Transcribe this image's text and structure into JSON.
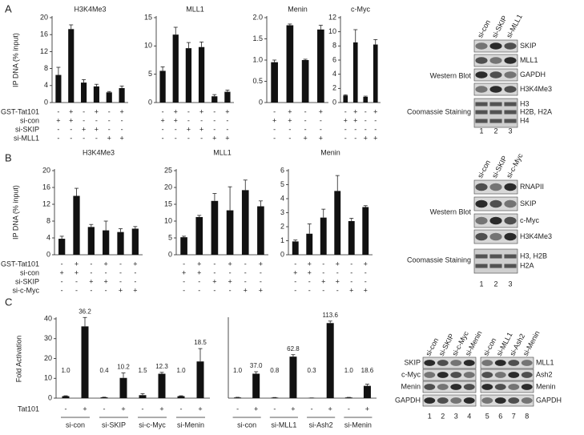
{
  "panels": [
    {
      "letter": "A",
      "ylabel": "IP DNA (% input)",
      "condition_names": [
        "GST-Tat101",
        "si-con",
        "si-SKIP",
        "si-MLL1"
      ]
    },
    {
      "letter": "B",
      "ylabel": "IP DNA (% input)",
      "condition_names": [
        "GST-Tat101",
        "si-con",
        "si-SKIP",
        "si-c-Myc"
      ]
    },
    {
      "letter": "C",
      "ylabel": "Fold Activation",
      "condition_names": [
        "Tat101"
      ]
    }
  ],
  "chart_data": [
    {
      "type": "bar",
      "title": "H3K4Me3",
      "color": "#111111",
      "values": [
        6.5,
        17.3,
        4.7,
        3.8,
        2.4,
        3.4
      ],
      "errors": [
        1.8,
        1.0,
        0.7,
        0.5,
        0.2,
        0.5
      ],
      "ylim": [
        0,
        20
      ],
      "yticks": [
        0,
        4,
        8,
        12,
        16,
        20
      ],
      "conditions": [
        [
          "-",
          "+",
          "-",
          "+",
          "-",
          "+"
        ],
        [
          "+",
          "+",
          "-",
          "-",
          "-",
          "-"
        ],
        [
          "-",
          "-",
          "+",
          "+",
          "-",
          "-"
        ],
        [
          "-",
          "-",
          "-",
          "-",
          "+",
          "+"
        ]
      ]
    },
    {
      "type": "bar",
      "title": "MLL1",
      "color": "#111111",
      "values": [
        5.6,
        12.0,
        9.6,
        9.8,
        1.1,
        1.9
      ],
      "errors": [
        0.7,
        1.3,
        1.0,
        0.9,
        0.3,
        0.3
      ],
      "ylim": [
        0,
        15
      ],
      "yticks": [
        0,
        5,
        10,
        15
      ],
      "conditions": [
        [
          "-",
          "+",
          "-",
          "+",
          "-",
          "+"
        ],
        [
          "+",
          "+",
          "-",
          "-",
          "-",
          "-"
        ],
        [
          "-",
          "-",
          "+",
          "+",
          "-",
          "-"
        ],
        [
          "-",
          "-",
          "-",
          "-",
          "+",
          "+"
        ]
      ]
    },
    {
      "type": "bar",
      "title": "Menin",
      "color": "#111111",
      "values": [
        0.95,
        1.82,
        1.0,
        1.72
      ],
      "errors": [
        0.05,
        0.03,
        0.02,
        0.1
      ],
      "ylim": [
        0,
        2
      ],
      "yticks": [
        0,
        0.5,
        {
          "value": 1,
          "label": "1.0"
        },
        1.5,
        {
          "value": 2,
          "label": "2.0"
        }
      ],
      "conditions": [
        [
          "-",
          "+",
          "-",
          "+"
        ],
        [
          "+",
          "+",
          "-",
          "-"
        ],
        [
          "-",
          "-",
          "-",
          "-"
        ],
        [
          "-",
          "-",
          "+",
          "+"
        ]
      ]
    },
    {
      "type": "bar",
      "title": "c-Myc",
      "color": "#111111",
      "values": [
        1.0,
        8.5,
        0.8,
        8.2
      ],
      "errors": [
        0.1,
        1.8,
        0.1,
        0.7
      ],
      "ylim": [
        0,
        12
      ],
      "yticks": [
        0,
        2,
        4,
        6,
        8,
        10,
        12
      ],
      "conditions": [
        [
          "-",
          "+",
          "-",
          "+"
        ],
        [
          "+",
          "+",
          "-",
          "-"
        ],
        [
          "-",
          "-",
          "-",
          "-"
        ],
        [
          "-",
          "-",
          "+",
          "+"
        ]
      ]
    },
    {
      "type": "bar",
      "title": "H3K4Me3",
      "color": "#111111",
      "values": [
        3.8,
        14.0,
        6.6,
        5.8,
        5.4,
        6.2
      ],
      "errors": [
        0.6,
        1.8,
        0.6,
        2.2,
        0.8,
        0.5
      ],
      "ylim": [
        0,
        20
      ],
      "yticks": [
        0,
        4,
        8,
        12,
        16,
        20
      ],
      "conditions": [
        [
          "-",
          "+",
          "-",
          "+",
          "-",
          "+"
        ],
        [
          "+",
          "+",
          "-",
          "-",
          "-",
          "-"
        ],
        [
          "-",
          "-",
          "+",
          "+",
          "-",
          "-"
        ],
        [
          "-",
          "-",
          "-",
          "-",
          "+",
          "+"
        ]
      ]
    },
    {
      "type": "bar",
      "title": "MLL1",
      "color": "#111111",
      "values": [
        5.2,
        11.2,
        16.0,
        13.2,
        19.2,
        14.4
      ],
      "errors": [
        0.3,
        0.5,
        2.2,
        7.0,
        3.0,
        1.6
      ],
      "ylim": [
        0,
        25
      ],
      "yticks": [
        0,
        5,
        10,
        15,
        20,
        25
      ],
      "conditions": [
        [
          "-",
          "+",
          "-",
          "+",
          "-",
          "+"
        ],
        [
          "+",
          "+",
          "-",
          "-",
          "-",
          "-"
        ],
        [
          "-",
          "-",
          "+",
          "+",
          "-",
          "-"
        ],
        [
          "-",
          "-",
          "-",
          "-",
          "+",
          "+"
        ]
      ]
    },
    {
      "type": "bar",
      "title": "Menin",
      "color": "#111111",
      "values": [
        0.95,
        1.5,
        2.65,
        4.55,
        2.4,
        3.4
      ],
      "errors": [
        0.1,
        0.7,
        0.6,
        1.1,
        0.2,
        0.1
      ],
      "ylim": [
        0,
        6
      ],
      "yticks": [
        0,
        1,
        2,
        3,
        4,
        5,
        6
      ],
      "conditions": [
        [
          "-",
          "+",
          "-",
          "+",
          "-",
          "+"
        ],
        [
          "+",
          "+",
          "-",
          "-",
          "-",
          "-"
        ],
        [
          "-",
          "-",
          "+",
          "+",
          "-",
          "-"
        ],
        [
          "-",
          "-",
          "-",
          "-",
          "+",
          "+"
        ]
      ]
    },
    {
      "type": "bar",
      "color": "#111111",
      "values": [
        1.0,
        36.2,
        0.4,
        10.2,
        1.5,
        12.3,
        1.0,
        18.5
      ],
      "value_labels": [
        "1.0",
        "36.2",
        "0.4",
        "10.2",
        "1.5",
        "12.3",
        "1.0",
        "18.5"
      ],
      "errors": [
        0.2,
        4.5,
        0.1,
        2.5,
        0.8,
        0.7,
        0.2,
        6.5
      ],
      "ylim": [
        0,
        40
      ],
      "yticks": [
        0,
        10,
        20,
        30,
        40
      ],
      "conditions": [
        [
          "-",
          "+",
          "-",
          "+",
          "-",
          "+",
          "-",
          "+"
        ]
      ],
      "groups": [
        "si-con",
        "si-SKIP",
        "si-c-Myc",
        "si-Menin"
      ]
    },
    {
      "type": "bar",
      "color": "#111111",
      "values": [
        1.0,
        37.0,
        0.8,
        62.8,
        0.3,
        113.6,
        1.0,
        18.6
      ],
      "value_labels": [
        "1.0",
        "37.0",
        "0.8",
        "62.8",
        "0.3",
        "113.6",
        "1.0",
        "18.6"
      ],
      "errors": [
        0.3,
        3.0,
        0.2,
        3.0,
        0.1,
        3.0,
        0.2,
        2.5
      ],
      "ylim": [
        0,
        120
      ],
      "conditions": [
        [
          "-",
          "+",
          "-",
          "+",
          "-",
          "+",
          "-",
          "+"
        ]
      ],
      "groups": [
        "si-con",
        "si-MLL1",
        "si-Ash2",
        "si-Menin"
      ]
    }
  ],
  "blots": [
    {
      "lanes": [
        "si-con",
        "si-SKIP",
        "si-MLL1"
      ],
      "bands": [
        "SKIP",
        "MLL1",
        "GAPDH",
        "H3K4Me3"
      ],
      "stain_bands": [
        "H3",
        "H2B, H2A",
        "H4"
      ],
      "groups": [
        "Western Blot",
        "Coomassie Staining"
      ],
      "lane_numbers": [
        1,
        2,
        3
      ]
    },
    {
      "lanes": [
        "si-con",
        "si-SKIP",
        "si-c-Myc"
      ],
      "bands": [
        "RNAPII",
        "SKIP",
        "c-Myc",
        "H3K4Me3"
      ],
      "stain_bands": [
        "H3, H2B",
        "H2A"
      ],
      "groups": [
        "Western Blot",
        "Coomassie Staining"
      ],
      "lane_numbers": [
        1,
        2,
        3
      ]
    },
    {
      "lanes": [
        "si-con",
        "si-SKIP",
        "si-c-Myc",
        "si-Menin"
      ],
      "bands": [
        "SKIP",
        "c-Myc",
        "Menin",
        "GAPDH"
      ],
      "lane_numbers": [
        1,
        2,
        3,
        4
      ]
    },
    {
      "lanes": [
        "si-con",
        "si-MLL1",
        "si-Ash2",
        "si-Menin"
      ],
      "bands": [
        "MLL1",
        "Ash2",
        "Menin",
        "GAPDH"
      ],
      "lane_numbers": [
        5,
        6,
        7,
        8
      ]
    }
  ]
}
